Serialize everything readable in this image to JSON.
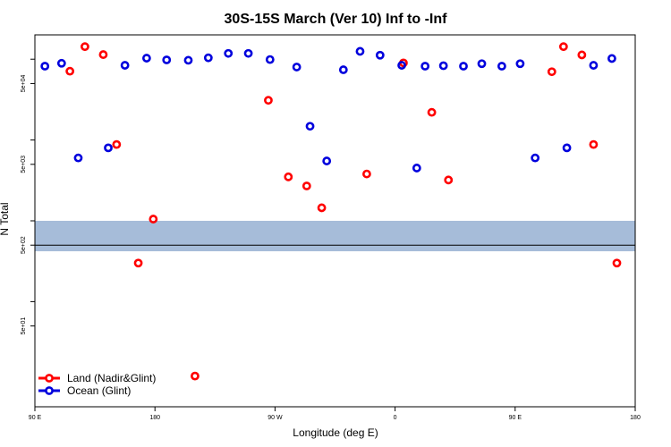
{
  "chart_data": {
    "type": "scatter",
    "title": "30S-15S March (Ver 10)   Inf to -Inf",
    "xlabel": "Longitude (deg E)",
    "ylabel": "N Total",
    "y_scale": "log",
    "xlim": [
      90,
      450
    ],
    "ylim": [
      5,
      200000
    ],
    "x_ticks": [
      {
        "value": 90,
        "label": "90 E"
      },
      {
        "value": 162,
        "label": "180"
      },
      {
        "value": 234,
        "label": "90 W"
      },
      {
        "value": 306,
        "label": "0"
      },
      {
        "value": 378,
        "label": "90 E"
      },
      {
        "value": 450,
        "label": "180"
      }
    ],
    "y_ticks": [
      {
        "value": 50,
        "label": "5e+01"
      },
      {
        "value": 500,
        "label": "5e+02"
      },
      {
        "value": 5000,
        "label": "5e+03"
      },
      {
        "value": 50000,
        "label": "5e+04"
      }
    ],
    "y_minor_ticks": [
      100,
      1000,
      10000,
      100000
    ],
    "reference_line": 500,
    "land_ocean_band": {
      "low": 420,
      "high": 1000
    },
    "series": [
      {
        "name": "Land (Nadir&Glint)",
        "color": "#ff0000",
        "points": [
          [
            111,
            71000
          ],
          [
            120,
            143000
          ],
          [
            131,
            114000
          ],
          [
            139,
            8800
          ],
          [
            152,
            300
          ],
          [
            161,
            1050
          ],
          [
            186,
            12
          ],
          [
            230,
            31000
          ],
          [
            242,
            3500
          ],
          [
            253,
            2700
          ],
          [
            262,
            1450
          ],
          [
            289,
            3800
          ],
          [
            311,
            90000
          ],
          [
            328,
            22000
          ],
          [
            338,
            3200
          ],
          [
            400,
            70000
          ],
          [
            407,
            143000
          ],
          [
            418,
            113000
          ],
          [
            425,
            8800
          ],
          [
            439,
            300
          ]
        ]
      },
      {
        "name": "Ocean (Glint)",
        "color": "#0000dd",
        "points": [
          [
            96,
            82000
          ],
          [
            106,
            89000
          ],
          [
            116,
            6000
          ],
          [
            134,
            8000
          ],
          [
            144,
            84000
          ],
          [
            157,
            103000
          ],
          [
            169,
            98000
          ],
          [
            182,
            97000
          ],
          [
            194,
            104000
          ],
          [
            206,
            118000
          ],
          [
            218,
            118000
          ],
          [
            231,
            99000
          ],
          [
            247,
            80000
          ],
          [
            255,
            14800
          ],
          [
            265,
            5500
          ],
          [
            275,
            74000
          ],
          [
            285,
            125000
          ],
          [
            297,
            112000
          ],
          [
            310,
            84000
          ],
          [
            319,
            4500
          ],
          [
            324,
            82000
          ],
          [
            335,
            83000
          ],
          [
            347,
            82000
          ],
          [
            358,
            88000
          ],
          [
            370,
            82000
          ],
          [
            381,
            88000
          ],
          [
            390,
            6000
          ],
          [
            409,
            8000
          ],
          [
            425,
            84000
          ],
          [
            436,
            102000
          ]
        ]
      }
    ],
    "legend": {
      "position": "bottom-left",
      "entries": [
        "Land (Nadir&Glint)",
        "Ocean (Glint)"
      ]
    },
    "colors": {
      "land_fill": "#ffd873",
      "ocean_fill": "#a6bcd9",
      "frame": "#000000"
    }
  }
}
